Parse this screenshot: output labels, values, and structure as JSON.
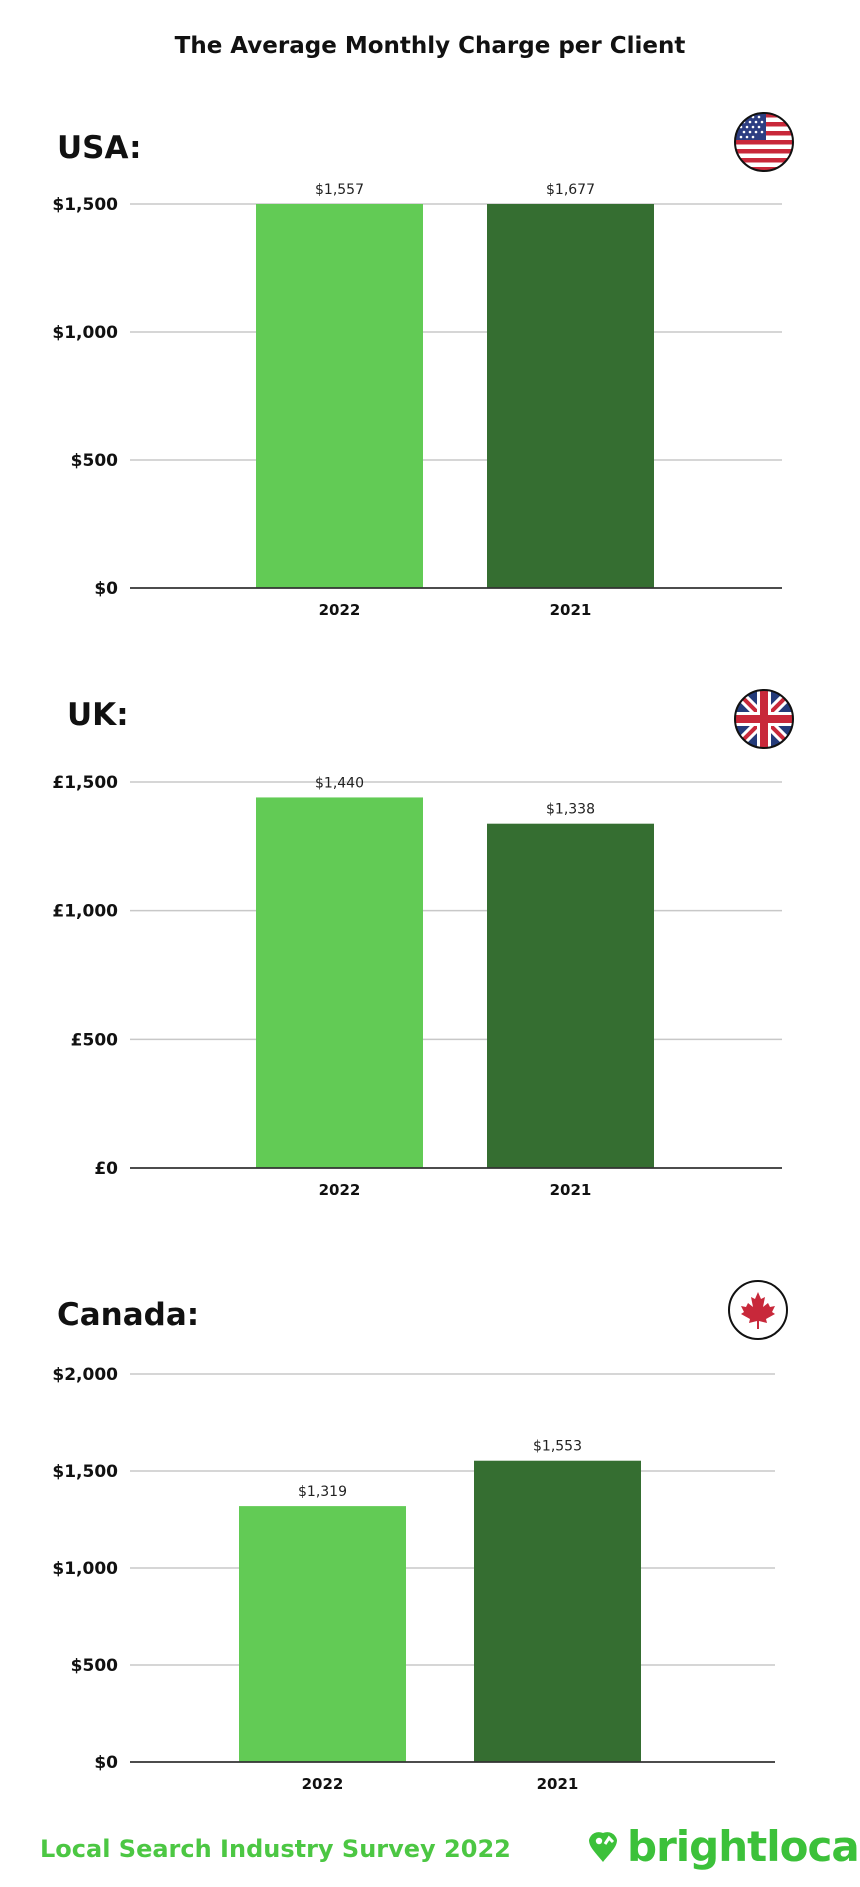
{
  "title": "The Average Monthly Charge per Client",
  "footer": {
    "survey": "Local Search Industry Survey 2022",
    "brand": "brightlocal"
  },
  "colors": {
    "bar_2022": "#62cb55",
    "bar_2021": "#356e31",
    "gridline": "#c8c8c8",
    "baseline": "#333333",
    "footer_green": "#4cc743"
  },
  "chart_data": [
    {
      "type": "bar",
      "title": "USA:",
      "flag_icon": "usa-flag-icon",
      "currency": "$",
      "categories": [
        "2022",
        "2021"
      ],
      "values": [
        1557,
        1677
      ],
      "value_labels": [
        "$1,557",
        "$1,677"
      ],
      "y_ticks": [
        0,
        500,
        1000,
        1500
      ],
      "y_tick_labels": [
        "$0",
        "$500",
        "$1,000",
        "$1,500"
      ],
      "ylim": [
        0,
        1500
      ],
      "grid": true,
      "xlabel": "",
      "ylabel": ""
    },
    {
      "type": "bar",
      "title": "UK:",
      "flag_icon": "uk-flag-icon",
      "currency": "£",
      "categories": [
        "2022",
        "2021"
      ],
      "values": [
        1440,
        1338
      ],
      "value_labels": [
        "$1,440",
        "$1,338"
      ],
      "y_ticks": [
        0,
        500,
        1000,
        1500
      ],
      "y_tick_labels": [
        "£0",
        "£500",
        "£1,000",
        "£1,500"
      ],
      "ylim": [
        0,
        1500
      ],
      "grid": true,
      "xlabel": "",
      "ylabel": ""
    },
    {
      "type": "bar",
      "title": "Canada:",
      "flag_icon": "canada-flag-icon",
      "currency": "$",
      "categories": [
        "2022",
        "2021"
      ],
      "values": [
        1319,
        1553
      ],
      "value_labels": [
        "$1,319",
        "$1,553"
      ],
      "y_ticks": [
        0,
        500,
        1000,
        1500,
        2000
      ],
      "y_tick_labels": [
        "$0",
        "$500",
        "$1,000",
        "$1,500",
        "$2,000"
      ],
      "ylim": [
        0,
        2000
      ],
      "grid": true,
      "xlabel": "",
      "ylabel": ""
    }
  ]
}
